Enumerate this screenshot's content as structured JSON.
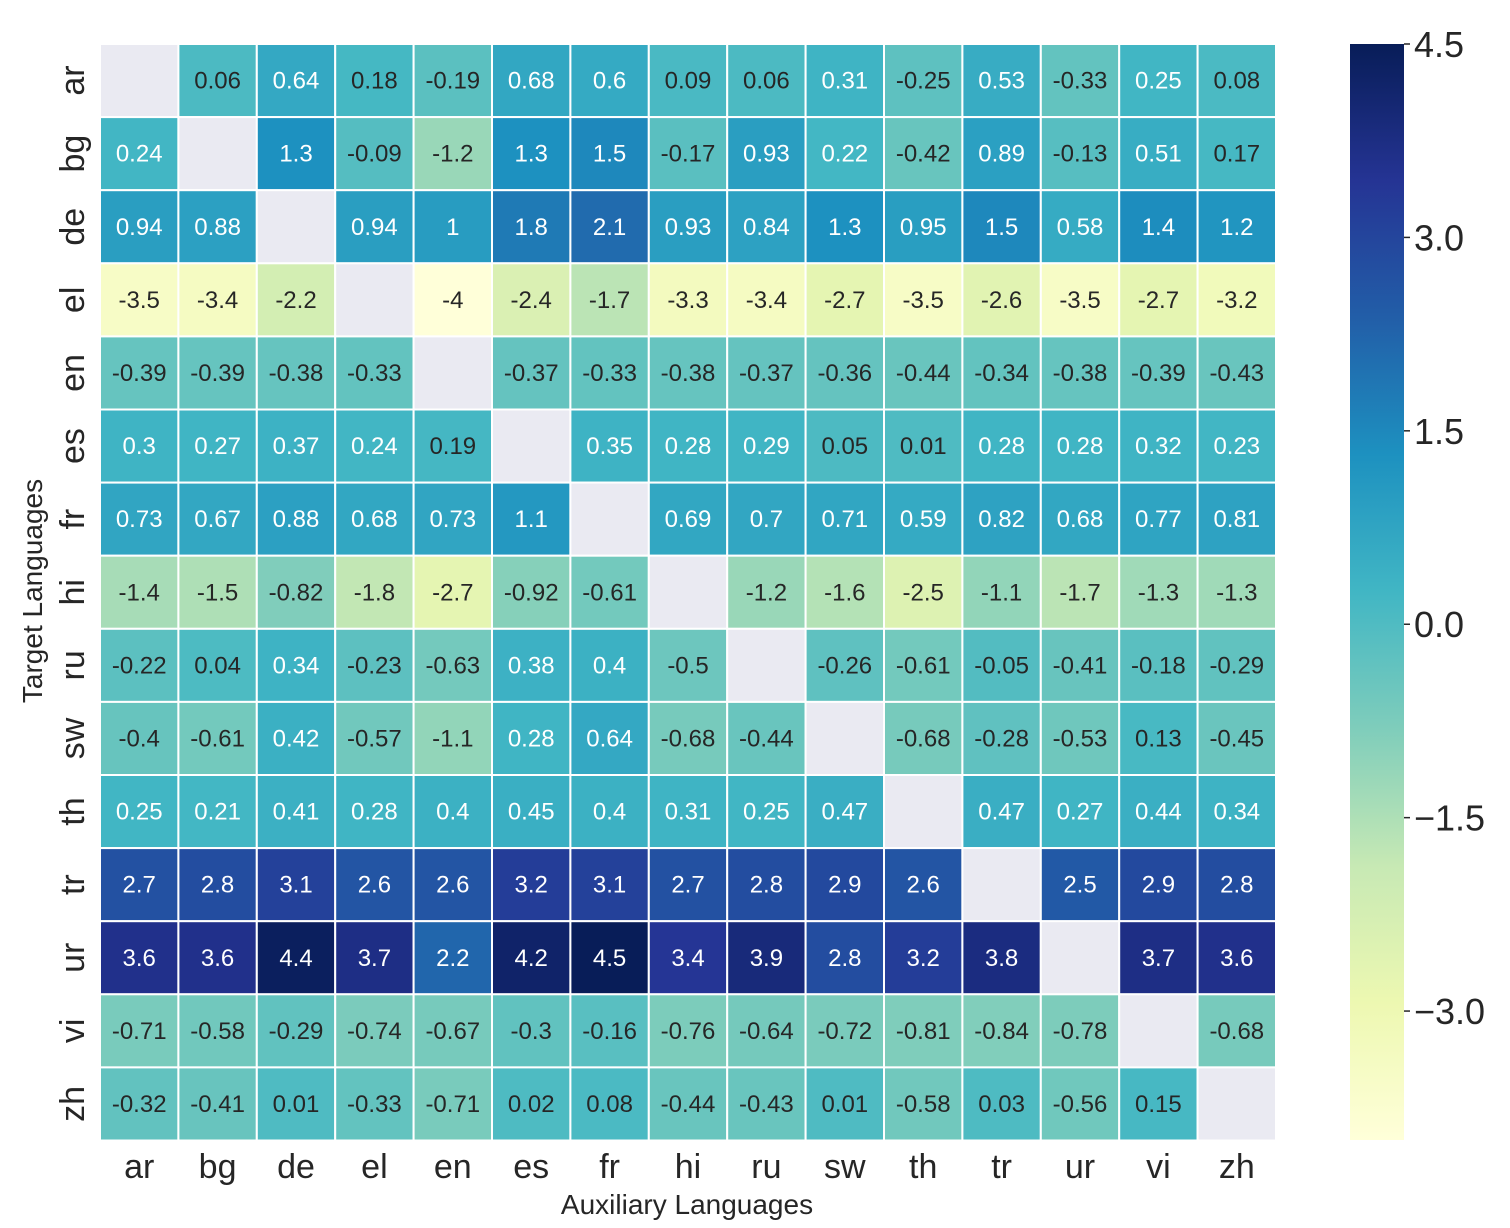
{
  "chart_data": {
    "type": "heatmap",
    "title": "",
    "xlabel": "Auxiliary Languages",
    "ylabel": "Target Languages",
    "x_categories": [
      "ar",
      "bg",
      "de",
      "el",
      "en",
      "es",
      "fr",
      "hi",
      "ru",
      "sw",
      "th",
      "tr",
      "ur",
      "vi",
      "zh"
    ],
    "y_categories": [
      "ar",
      "bg",
      "de",
      "el",
      "en",
      "es",
      "fr",
      "hi",
      "ru",
      "sw",
      "th",
      "tr",
      "ur",
      "vi",
      "zh"
    ],
    "values": [
      [
        null,
        0.06,
        0.64,
        0.18,
        -0.19,
        0.68,
        0.6,
        0.09,
        0.06,
        0.31,
        -0.25,
        0.53,
        -0.33,
        0.25,
        0.08
      ],
      [
        0.24,
        null,
        1.3,
        -0.09,
        -1.2,
        1.3,
        1.5,
        -0.17,
        0.93,
        0.22,
        -0.42,
        0.89,
        -0.13,
        0.51,
        0.17
      ],
      [
        0.94,
        0.88,
        null,
        0.94,
        1,
        1.8,
        2.1,
        0.93,
        0.84,
        1.3,
        0.95,
        1.5,
        0.58,
        1.4,
        1.2
      ],
      [
        -3.5,
        -3.4,
        -2.2,
        null,
        -4,
        -2.4,
        -1.7,
        -3.3,
        -3.4,
        -2.7,
        -3.5,
        -2.6,
        -3.5,
        -2.7,
        -3.2
      ],
      [
        -0.39,
        -0.39,
        -0.38,
        -0.33,
        null,
        -0.37,
        -0.33,
        -0.38,
        -0.37,
        -0.36,
        -0.44,
        -0.34,
        -0.38,
        -0.39,
        -0.43
      ],
      [
        0.3,
        0.27,
        0.37,
        0.24,
        0.19,
        null,
        0.35,
        0.28,
        0.29,
        0.05,
        0.01,
        0.28,
        0.28,
        0.32,
        0.23
      ],
      [
        0.73,
        0.67,
        0.88,
        0.68,
        0.73,
        1.1,
        null,
        0.69,
        0.7,
        0.71,
        0.59,
        0.82,
        0.68,
        0.77,
        0.81
      ],
      [
        -1.4,
        -1.5,
        -0.82,
        -1.8,
        -2.7,
        -0.92,
        -0.61,
        null,
        -1.2,
        -1.6,
        -2.5,
        -1.1,
        -1.7,
        -1.3,
        -1.3
      ],
      [
        -0.22,
        0.04,
        0.34,
        -0.23,
        -0.63,
        0.38,
        0.4,
        -0.5,
        null,
        -0.26,
        -0.61,
        -0.05,
        -0.41,
        -0.18,
        -0.29
      ],
      [
        -0.4,
        -0.61,
        0.42,
        -0.57,
        -1.1,
        0.28,
        0.64,
        -0.68,
        -0.44,
        null,
        -0.68,
        -0.28,
        -0.53,
        0.13,
        -0.45
      ],
      [
        0.25,
        0.21,
        0.41,
        0.28,
        0.4,
        0.45,
        0.4,
        0.31,
        0.25,
        0.47,
        null,
        0.47,
        0.27,
        0.44,
        0.34
      ],
      [
        2.7,
        2.8,
        3.1,
        2.6,
        2.6,
        3.2,
        3.1,
        2.7,
        2.8,
        2.9,
        2.6,
        null,
        2.5,
        2.9,
        2.8
      ],
      [
        3.6,
        3.6,
        4.4,
        3.7,
        2.2,
        4.2,
        4.5,
        3.4,
        3.9,
        2.8,
        3.2,
        3.8,
        null,
        3.7,
        3.6
      ],
      [
        -0.71,
        -0.58,
        -0.29,
        -0.74,
        -0.67,
        -0.3,
        -0.16,
        -0.76,
        -0.64,
        -0.72,
        -0.81,
        -0.84,
        -0.78,
        null,
        -0.68
      ],
      [
        -0.32,
        -0.41,
        0.01,
        -0.33,
        -0.71,
        0.02,
        0.08,
        -0.44,
        -0.43,
        0.01,
        -0.58,
        0.03,
        -0.56,
        0.15,
        null
      ]
    ],
    "value_labels": [
      [
        "",
        "0.06",
        "0.64",
        "0.18",
        "-0.19",
        "0.68",
        "0.6",
        "0.09",
        "0.06",
        "0.31",
        "-0.25",
        "0.53",
        "-0.33",
        "0.25",
        "0.08"
      ],
      [
        "0.24",
        "",
        "1.3",
        "-0.09",
        "-1.2",
        "1.3",
        "1.5",
        "-0.17",
        "0.93",
        "0.22",
        "-0.42",
        "0.89",
        "-0.13",
        "0.51",
        "0.17"
      ],
      [
        "0.94",
        "0.88",
        "",
        "0.94",
        "1",
        "1.8",
        "2.1",
        "0.93",
        "0.84",
        "1.3",
        "0.95",
        "1.5",
        "0.58",
        "1.4",
        "1.2"
      ],
      [
        "-3.5",
        "-3.4",
        "-2.2",
        "",
        "-4",
        "-2.4",
        "-1.7",
        "-3.3",
        "-3.4",
        "-2.7",
        "-3.5",
        "-2.6",
        "-3.5",
        "-2.7",
        "-3.2"
      ],
      [
        "-0.39",
        "-0.39",
        "-0.38",
        "-0.33",
        "",
        "-0.37",
        "-0.33",
        "-0.38",
        "-0.37",
        "-0.36",
        "-0.44",
        "-0.34",
        "-0.38",
        "-0.39",
        "-0.43"
      ],
      [
        "0.3",
        "0.27",
        "0.37",
        "0.24",
        "0.19",
        "",
        "0.35",
        "0.28",
        "0.29",
        "0.05",
        "0.01",
        "0.28",
        "0.28",
        "0.32",
        "0.23"
      ],
      [
        "0.73",
        "0.67",
        "0.88",
        "0.68",
        "0.73",
        "1.1",
        "",
        "0.69",
        "0.7",
        "0.71",
        "0.59",
        "0.82",
        "0.68",
        "0.77",
        "0.81"
      ],
      [
        "-1.4",
        "-1.5",
        "-0.82",
        "-1.8",
        "-2.7",
        "-0.92",
        "-0.61",
        "",
        "-1.2",
        "-1.6",
        "-2.5",
        "-1.1",
        "-1.7",
        "-1.3",
        "-1.3"
      ],
      [
        "-0.22",
        "0.04",
        "0.34",
        "-0.23",
        "-0.63",
        "0.38",
        "0.4",
        "-0.5",
        "",
        "-0.26",
        "-0.61",
        "-0.05",
        "-0.41",
        "-0.18",
        "-0.29"
      ],
      [
        "-0.4",
        "-0.61",
        "0.42",
        "-0.57",
        "-1.1",
        "0.28",
        "0.64",
        "-0.68",
        "-0.44",
        "",
        "-0.68",
        "-0.28",
        "-0.53",
        "0.13",
        "-0.45"
      ],
      [
        "0.25",
        "0.21",
        "0.41",
        "0.28",
        "0.4",
        "0.45",
        "0.4",
        "0.31",
        "0.25",
        "0.47",
        "",
        "0.47",
        "0.27",
        "0.44",
        "0.34"
      ],
      [
        "2.7",
        "2.8",
        "3.1",
        "2.6",
        "2.6",
        "3.2",
        "3.1",
        "2.7",
        "2.8",
        "2.9",
        "2.6",
        "",
        "2.5",
        "2.9",
        "2.8"
      ],
      [
        "3.6",
        "3.6",
        "4.4",
        "3.7",
        "2.2",
        "4.2",
        "4.5",
        "3.4",
        "3.9",
        "2.8",
        "3.2",
        "3.8",
        "",
        "3.7",
        "3.6"
      ],
      [
        "-0.71",
        "-0.58",
        "-0.29",
        "-0.74",
        "-0.67",
        "-0.3",
        "-0.16",
        "-0.76",
        "-0.64",
        "-0.72",
        "-0.81",
        "-0.84",
        "-0.78",
        "",
        "-0.68"
      ],
      [
        "-0.32",
        "-0.41",
        "0.01",
        "-0.33",
        "-0.71",
        "0.02",
        "0.08",
        "-0.44",
        "-0.43",
        "0.01",
        "-0.58",
        "0.03",
        "-0.56",
        "0.15",
        ""
      ]
    ],
    "missing_color": "#eaeaf2",
    "colormap": "YlGnBu",
    "colormap_stops": [
      "#ffffd9",
      "#edf8b1",
      "#c7e9b4",
      "#7fcdbb",
      "#41b6c4",
      "#1d91c0",
      "#225ea8",
      "#253494",
      "#081d58"
    ],
    "vmin": -4.0,
    "vmax": 4.5,
    "colorbar": {
      "ticks": [
        4.5,
        3.0,
        1.5,
        0.0,
        -1.5,
        -3.0
      ],
      "tick_labels": [
        "4.5",
        "3.0",
        "1.5",
        "0.0",
        "−1.5",
        "−3.0"
      ],
      "placement": "right"
    }
  }
}
